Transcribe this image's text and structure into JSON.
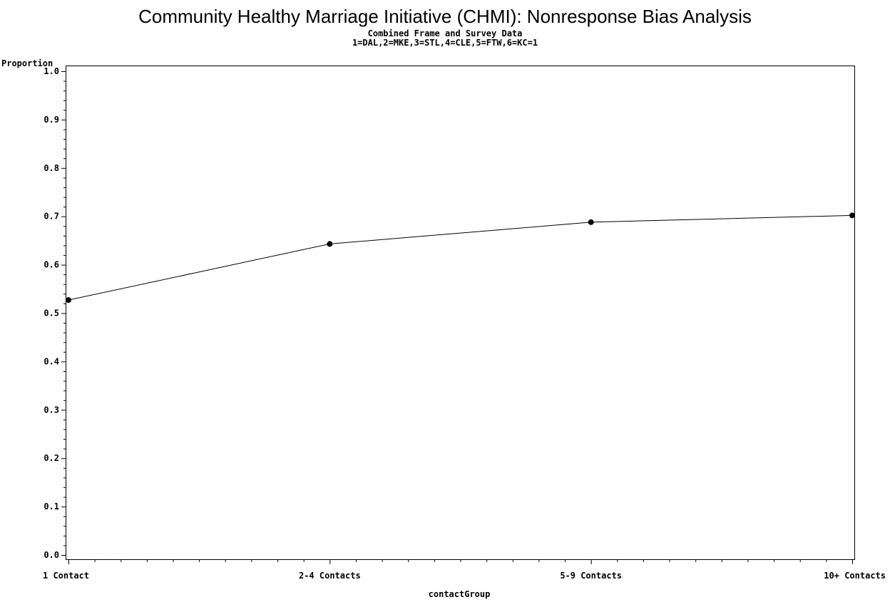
{
  "chart_data": {
    "type": "line",
    "title": "Community Healthy Marriage Initiative (CHMI): Nonresponse Bias Analysis",
    "subtitles": [
      "Combined Frame and Survey Data",
      "1=DAL,2=MKE,3=STL,4=CLE,5=FTW,6=KC=1"
    ],
    "xlabel": "contactGroup",
    "ylabel": "Proportion",
    "categories": [
      "1 Contact",
      "2-4 Contacts",
      "5-9 Contacts",
      "10+ Contacts"
    ],
    "series": [
      {
        "values": [
          0.527,
          0.643,
          0.688,
          0.702
        ]
      }
    ],
    "ylim": [
      0.0,
      1.0
    ],
    "yticks": [
      "0.0",
      "0.1",
      "0.2",
      "0.3",
      "0.4",
      "0.5",
      "0.6",
      "0.7",
      "0.8",
      "0.9",
      "1.0"
    ],
    "grid": false,
    "marker": "dot",
    "line_color": "#000000"
  }
}
